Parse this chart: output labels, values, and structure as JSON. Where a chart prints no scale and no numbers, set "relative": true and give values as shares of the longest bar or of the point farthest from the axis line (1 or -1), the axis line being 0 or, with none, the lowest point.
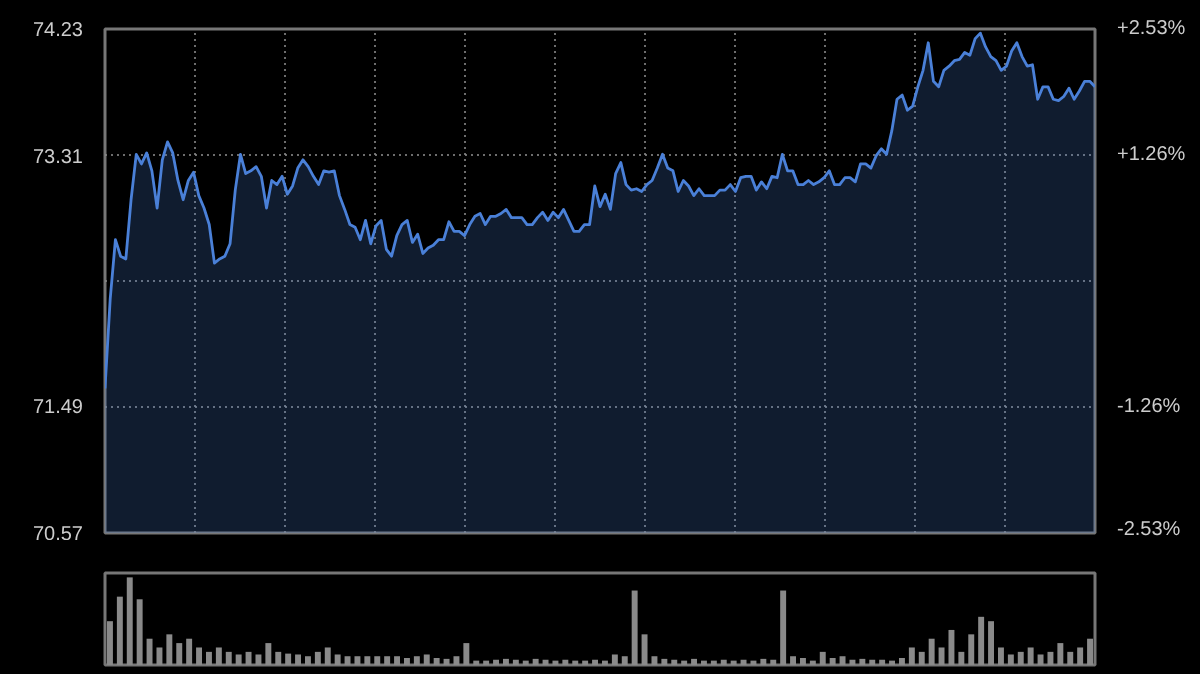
{
  "chart_data": [
    {
      "type": "area",
      "categories": [
        null,
        null,
        null,
        null,
        null,
        null,
        null,
        null,
        null,
        null,
        null,
        null,
        null,
        null,
        null,
        null,
        null,
        null,
        null,
        null,
        null,
        null,
        null,
        null,
        null,
        null,
        null,
        null,
        null,
        null,
        null,
        null,
        null,
        null,
        null,
        null,
        null,
        null,
        null,
        null,
        null,
        null,
        null,
        null,
        null,
        null,
        null,
        null,
        null,
        null,
        null,
        null,
        null,
        null,
        null,
        null,
        null,
        null,
        null,
        null,
        null,
        null,
        null,
        null,
        null,
        null,
        null,
        null,
        null,
        null,
        null,
        null,
        null,
        null,
        null,
        null,
        null,
        null,
        null,
        null,
        null,
        null,
        null,
        null,
        null,
        null,
        null,
        null,
        null,
        null,
        null,
        null,
        null,
        null,
        null,
        null,
        null,
        null,
        null,
        null,
        null,
        null,
        null,
        null,
        null,
        null,
        null,
        null,
        null,
        null,
        null,
        null,
        null,
        null,
        null,
        null,
        null,
        null,
        null,
        null,
        null,
        null,
        null,
        null,
        null,
        null,
        null,
        null,
        null,
        null,
        null,
        null,
        null,
        null,
        null,
        null,
        null,
        null,
        null,
        null,
        null,
        null,
        null,
        null,
        null,
        null,
        null,
        null,
        null,
        null,
        null,
        null,
        null,
        null,
        null,
        null,
        null,
        null,
        null,
        null,
        null,
        null,
        null,
        null,
        null,
        null,
        null,
        null,
        null,
        null,
        null,
        null,
        null,
        null,
        null,
        null,
        null,
        null,
        null,
        null,
        null,
        null,
        null,
        null,
        null,
        null,
        null,
        null,
        null,
        null,
        null
      ],
      "series": [
        {
          "color": "#4a80d8",
          "values": [
            71.62,
            72.27,
            72.7,
            72.58,
            72.56,
            72.99,
            73.32,
            73.25,
            73.33,
            73.2,
            72.93,
            73.28,
            73.41,
            73.33,
            73.13,
            72.99,
            73.13,
            73.19,
            73.02,
            72.93,
            72.81,
            72.53,
            72.56,
            72.58,
            72.67,
            73.06,
            73.32,
            73.18,
            73.2,
            73.23,
            73.16,
            72.93,
            73.13,
            73.1,
            73.16,
            73.03,
            73.09,
            73.22,
            73.28,
            73.23,
            73.16,
            73.1,
            73.2,
            73.19,
            73.2,
            73.02,
            72.92,
            72.81,
            72.79,
            72.7,
            72.84,
            72.67,
            72.8,
            72.84,
            72.63,
            72.58,
            72.73,
            72.81,
            72.84,
            72.68,
            72.74,
            72.6,
            72.64,
            72.66,
            72.7,
            72.7,
            72.83,
            72.76,
            72.76,
            72.73,
            72.81,
            72.87,
            72.89,
            72.81,
            72.87,
            72.87,
            72.89,
            72.92,
            72.86,
            72.86,
            72.86,
            72.81,
            72.81,
            72.86,
            72.9,
            72.84,
            72.9,
            72.86,
            72.92,
            72.84,
            72.76,
            72.76,
            72.81,
            72.81,
            73.09,
            72.94,
            73.03,
            72.92,
            73.18,
            73.26,
            73.1,
            73.06,
            73.07,
            73.05,
            73.1,
            73.13,
            73.22,
            73.32,
            73.22,
            73.2,
            73.05,
            73.13,
            73.09,
            73.02,
            73.07,
            73.02,
            73.02,
            73.02,
            73.06,
            73.06,
            73.1,
            73.05,
            73.15,
            73.16,
            73.16,
            73.06,
            73.12,
            73.07,
            73.16,
            73.15,
            73.32,
            73.2,
            73.2,
            73.1,
            73.1,
            73.13,
            73.1,
            73.12,
            73.15,
            73.2,
            73.1,
            73.1,
            73.15,
            73.15,
            73.12,
            73.25,
            73.25,
            73.22,
            73.31,
            73.36,
            73.32,
            73.49,
            73.72,
            73.75,
            73.64,
            73.67,
            73.81,
            73.93,
            74.13,
            73.85,
            73.81,
            73.93,
            73.96,
            74.0,
            74.01,
            74.06,
            74.04,
            74.16,
            74.2,
            74.1,
            74.03,
            74.0,
            73.93,
            73.96,
            74.07,
            74.13,
            74.03,
            73.96,
            73.97,
            73.72,
            73.81,
            73.81,
            73.72,
            73.71,
            73.74,
            73.8,
            73.72,
            73.78,
            73.85,
            73.85,
            73.81
          ]
        }
      ],
      "ylim": [
        70.57,
        74.23
      ],
      "yticks": [
        70.57,
        71.49,
        {
          "value": 72.4,
          "label": null
        },
        73.31,
        74.23
      ],
      "y2lim": [
        -2.53,
        2.53
      ],
      "y2ticks": [
        {
          "value": -2.53,
          "label": "-2.53%"
        },
        {
          "value": -1.26,
          "label": "-1.26%"
        },
        {
          "value": 1.26,
          "label": "+1.26%"
        },
        {
          "value": 2.53,
          "label": "+2.53%"
        }
      ],
      "grid": true
    },
    {
      "type": "bar",
      "relative": true,
      "color": "#8a8a8a",
      "categories": [
        null,
        null,
        null,
        null,
        null,
        null,
        null,
        null,
        null,
        null,
        null,
        null,
        null,
        null,
        null,
        null,
        null,
        null,
        null,
        null,
        null,
        null,
        null,
        null,
        null,
        null,
        null,
        null,
        null,
        null,
        null,
        null,
        null,
        null,
        null,
        null,
        null,
        null,
        null,
        null,
        null,
        null,
        null,
        null,
        null,
        null,
        null,
        null,
        null,
        null,
        null,
        null,
        null,
        null,
        null,
        null,
        null,
        null,
        null,
        null,
        null,
        null,
        null,
        null,
        null,
        null,
        null,
        null,
        null,
        null,
        null,
        null,
        null,
        null,
        null,
        null,
        null,
        null,
        null,
        null,
        null,
        null,
        null,
        null,
        null,
        null,
        null,
        null,
        null,
        null,
        null,
        null,
        null,
        null,
        null,
        null,
        null,
        null,
        null,
        null
      ],
      "values": [
        0.5,
        0.78,
        1.0,
        0.75,
        0.3,
        0.2,
        0.35,
        0.25,
        0.3,
        0.2,
        0.15,
        0.2,
        0.15,
        0.12,
        0.15,
        0.12,
        0.25,
        0.15,
        0.13,
        0.12,
        0.1,
        0.15,
        0.2,
        0.12,
        0.1,
        0.1,
        0.1,
        0.1,
        0.1,
        0.1,
        0.08,
        0.1,
        0.12,
        0.08,
        0.07,
        0.1,
        0.25,
        0.05,
        0.05,
        0.06,
        0.07,
        0.06,
        0.05,
        0.07,
        0.06,
        0.05,
        0.06,
        0.05,
        0.05,
        0.06,
        0.05,
        0.12,
        0.1,
        0.85,
        0.35,
        0.1,
        0.07,
        0.06,
        0.05,
        0.07,
        0.05,
        0.05,
        0.06,
        0.05,
        0.06,
        0.05,
        0.07,
        0.06,
        0.85,
        0.1,
        0.08,
        0.05,
        0.15,
        0.08,
        0.1,
        0.06,
        0.07,
        0.06,
        0.06,
        0.05,
        0.08,
        0.2,
        0.15,
        0.3,
        0.2,
        0.4,
        0.15,
        0.35,
        0.55,
        0.5,
        0.2,
        0.12,
        0.15,
        0.2,
        0.12,
        0.15,
        0.25,
        0.15,
        0.2,
        0.3
      ]
    }
  ]
}
